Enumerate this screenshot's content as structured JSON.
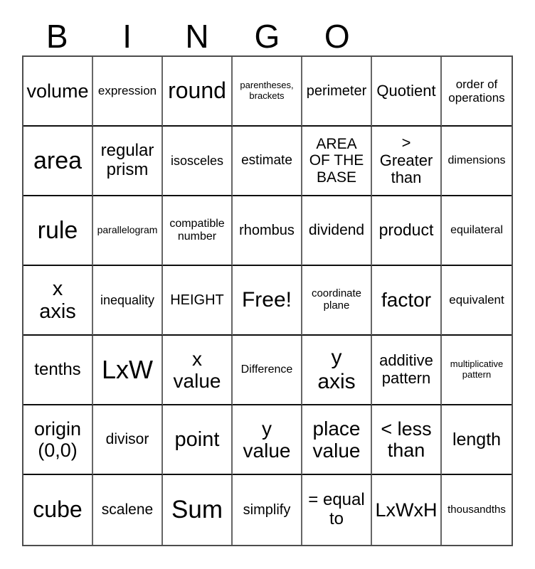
{
  "title": {
    "letters": [
      "B",
      "I",
      "N",
      "G",
      "O"
    ]
  },
  "colors": {
    "background": "#ffffff",
    "text": "#000000",
    "grid_line_vertical": "#666666",
    "grid_line_horizontal": "#0f0f0f",
    "outer_border": "#4d4d4d"
  },
  "grid": {
    "rows": [
      [
        {
          "text": "volume",
          "size": 27
        },
        {
          "text": "expression",
          "size": 17
        },
        {
          "text": "round",
          "size": 32
        },
        {
          "text": "parentheses,\nbrackets",
          "size": 13
        },
        {
          "text": "perimeter",
          "size": 20
        },
        {
          "text": "Quotient",
          "size": 22
        },
        {
          "text": "order of\noperations",
          "size": 17
        }
      ],
      [
        {
          "text": "area",
          "size": 34
        },
        {
          "text": "regular\nprism",
          "size": 24
        },
        {
          "text": "isosceles",
          "size": 18
        },
        {
          "text": "estimate",
          "size": 19
        },
        {
          "text": "AREA\nOF THE\nBASE",
          "size": 21
        },
        {
          "text": ">\nGreater\nthan",
          "size": 22
        },
        {
          "text": "dimensions",
          "size": 16
        }
      ],
      [
        {
          "text": "rule",
          "size": 34
        },
        {
          "text": "parallelogram",
          "size": 14
        },
        {
          "text": "compatible\nnumber",
          "size": 16
        },
        {
          "text": "rhombus",
          "size": 20
        },
        {
          "text": "dividend",
          "size": 21
        },
        {
          "text": "product",
          "size": 23
        },
        {
          "text": "equilateral",
          "size": 16
        }
      ],
      [
        {
          "text": "x\naxis",
          "size": 29
        },
        {
          "text": "inequality",
          "size": 18
        },
        {
          "text": "HEIGHT",
          "size": 20
        },
        {
          "text": "Free!",
          "size": 30
        },
        {
          "text": "coordinate\nplane",
          "size": 15
        },
        {
          "text": "factor",
          "size": 28
        },
        {
          "text": "equivalent",
          "size": 17
        }
      ],
      [
        {
          "text": "tenths",
          "size": 24
        },
        {
          "text": "LxW",
          "size": 36
        },
        {
          "text": "x\nvalue",
          "size": 28
        },
        {
          "text": "Difference",
          "size": 16
        },
        {
          "text": "y\naxis",
          "size": 30
        },
        {
          "text": "additive\npattern",
          "size": 22
        },
        {
          "text": "multiplicative\npattern",
          "size": 13
        }
      ],
      [
        {
          "text": "origin\n(0,0)",
          "size": 27
        },
        {
          "text": "divisor",
          "size": 21
        },
        {
          "text": "point",
          "size": 29
        },
        {
          "text": "y\nvalue",
          "size": 28
        },
        {
          "text": "place\nvalue",
          "size": 28
        },
        {
          "text": "< less\nthan",
          "size": 27
        },
        {
          "text": "length",
          "size": 25
        }
      ],
      [
        {
          "text": "cube",
          "size": 32
        },
        {
          "text": "scalene",
          "size": 21
        },
        {
          "text": "Sum",
          "size": 35
        },
        {
          "text": "simplify",
          "size": 20
        },
        {
          "text": "= equal\nto",
          "size": 24
        },
        {
          "text": "LxWxH",
          "size": 27
        },
        {
          "text": "thousandths",
          "size": 15
        }
      ]
    ]
  }
}
